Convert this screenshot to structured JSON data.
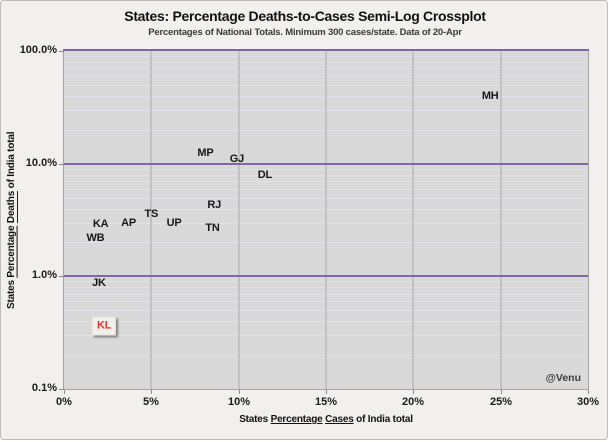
{
  "chart_data": {
    "type": "scatter",
    "title": "States: Percentage Deaths-to-Cases Semi-Log Crossplot",
    "subtitle": "Percentages of National Totals. Minimum 300 cases/state. Data of 20-Apr",
    "watermark": "@Venu",
    "x_axis": {
      "scale": "linear",
      "min": 0,
      "max": 30,
      "label_parts": [
        {
          "text": "States ",
          "underline": false
        },
        {
          "text": "Percentage",
          "underline": true
        },
        {
          "text": " ",
          "underline": false
        },
        {
          "text": "Cases",
          "underline": true
        },
        {
          "text": " of India total",
          "underline": false
        }
      ],
      "ticks": [
        {
          "value": 0,
          "label": "0%"
        },
        {
          "value": 5,
          "label": "5%"
        },
        {
          "value": 10,
          "label": "10%"
        },
        {
          "value": 15,
          "label": "15%"
        },
        {
          "value": 20,
          "label": "20%"
        },
        {
          "value": 25,
          "label": "25%"
        },
        {
          "value": 30,
          "label": "30%"
        }
      ]
    },
    "y_axis": {
      "scale": "log",
      "min": 0.1,
      "max": 100,
      "label_parts": [
        {
          "text": "States ",
          "underline": false
        },
        {
          "text": "Percentage",
          "underline": true
        },
        {
          "text": " ",
          "underline": false
        },
        {
          "text": "Deaths",
          "underline": true
        },
        {
          "text": " of India total",
          "underline": false
        }
      ],
      "ticks": [
        {
          "value": 100,
          "label": "100.0%"
        },
        {
          "value": 10,
          "label": "10.0%"
        },
        {
          "value": 1,
          "label": "1.0%"
        },
        {
          "value": 0.1,
          "label": "0.1%"
        }
      ],
      "minor_multiples": [
        2,
        3,
        4,
        5,
        6,
        7,
        8,
        9
      ]
    },
    "points": [
      {
        "state": "MH",
        "cases_pct": 24.4,
        "deaths_pct": 40.0
      },
      {
        "state": "MP",
        "cases_pct": 8.1,
        "deaths_pct": 12.5
      },
      {
        "state": "GJ",
        "cases_pct": 9.9,
        "deaths_pct": 11.0
      },
      {
        "state": "DL",
        "cases_pct": 11.5,
        "deaths_pct": 7.9
      },
      {
        "state": "RJ",
        "cases_pct": 8.6,
        "deaths_pct": 4.3
      },
      {
        "state": "TS",
        "cases_pct": 5.0,
        "deaths_pct": 3.6
      },
      {
        "state": "AP",
        "cases_pct": 3.7,
        "deaths_pct": 3.0
      },
      {
        "state": "UP",
        "cases_pct": 6.3,
        "deaths_pct": 3.0
      },
      {
        "state": "TN",
        "cases_pct": 8.5,
        "deaths_pct": 2.7
      },
      {
        "state": "KA",
        "cases_pct": 2.1,
        "deaths_pct": 2.9
      },
      {
        "state": "WB",
        "cases_pct": 1.8,
        "deaths_pct": 2.2
      },
      {
        "state": "JK",
        "cases_pct": 2.0,
        "deaths_pct": 0.87
      },
      {
        "state": "KL",
        "cases_pct": 2.3,
        "deaths_pct": 0.36,
        "highlighted": true
      }
    ],
    "highlight_state": "KL",
    "colors": {
      "canvas_bg": "#f1f0ee",
      "plot_bg": "#d9d9d9",
      "major_gridline": "#8266a4",
      "minor_gridline": "#e2e1e9",
      "vertical_gridline": "#c2c1c8",
      "axis_line": "#a5a5a5",
      "tick_mark": "#8a8a8a",
      "label_text": "#1a1a1a",
      "highlight_text": "#e03228",
      "highlight_box_bg": "#f2efec"
    }
  }
}
